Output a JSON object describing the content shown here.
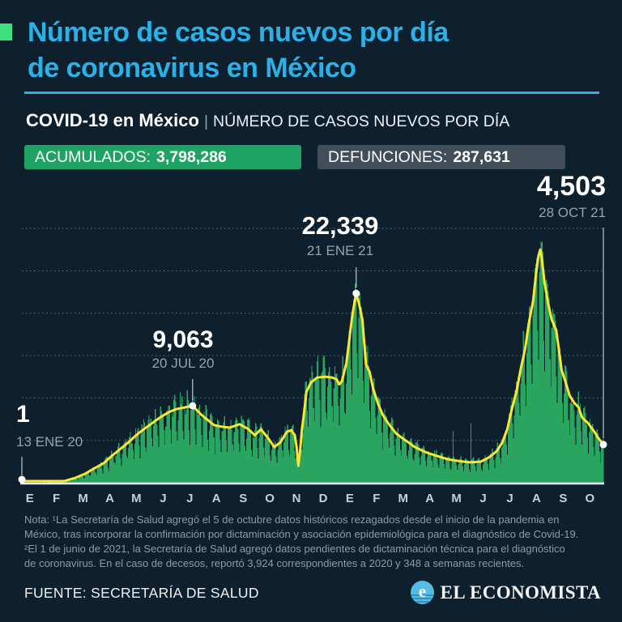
{
  "header": {
    "title_line1": "Número de casos nuevos por día",
    "title_line2": "de coronavirus en México",
    "subtitle_bold": "COVID-19 en México",
    "subtitle_sep": "|",
    "subtitle_rest": "NÚMERO DE CASOS NUEVOS POR DÍA",
    "accent_color": "#3FE081",
    "title_color": "#2BB1E7"
  },
  "badges": [
    {
      "label": "ACUMULADOS:",
      "value": "3,798,286",
      "bg": "#1FA364"
    },
    {
      "label": "DEFUNCIONES:",
      "value": "287,631",
      "bg": "#414E5A"
    }
  ],
  "chart_data": {
    "type": "bar",
    "title": "COVID-19 en México | Número de casos nuevos por día",
    "description": "barras = casos nuevos diarios; línea amarilla = tendencia (promedio móvil)",
    "x_start_date": "13 ENE 20",
    "x_end_date": "28 OCT 21",
    "months": [
      "E",
      "F",
      "M",
      "A",
      "M",
      "J",
      "J",
      "A",
      "S",
      "O",
      "N",
      "D",
      "E",
      "F",
      "M",
      "A",
      "M",
      "J",
      "J",
      "A",
      "S",
      "O"
    ],
    "ylim": [
      0,
      30000
    ],
    "grid_step": 5000,
    "grid_on": true,
    "annotations": [
      {
        "value": "1",
        "date": "13 ENE 20",
        "day": 0,
        "v": 1
      },
      {
        "value": "9,063",
        "date": "20 JUL 20",
        "day": 192,
        "v": 9063
      },
      {
        "value": "22,339",
        "date": "21 ENE 21",
        "day": 376,
        "v": 22339
      },
      {
        "value": "4,503",
        "date": "28 OCT 21",
        "day": 654,
        "v": 4503
      }
    ],
    "trend_7day_avg": [
      [
        0,
        1
      ],
      [
        20,
        10
      ],
      [
        35,
        60
      ],
      [
        48,
        200
      ],
      [
        60,
        570
      ],
      [
        71,
        1050
      ],
      [
        82,
        1720
      ],
      [
        92,
        2290
      ],
      [
        101,
        3150
      ],
      [
        110,
        3915
      ],
      [
        119,
        4680
      ],
      [
        128,
        5540
      ],
      [
        137,
        6300
      ],
      [
        147,
        7065
      ],
      [
        156,
        7735
      ],
      [
        165,
        8310
      ],
      [
        174,
        8690
      ],
      [
        183,
        8880
      ],
      [
        192,
        9063
      ],
      [
        202,
        8000
      ],
      [
        216,
        6800
      ],
      [
        225,
        6600
      ],
      [
        234,
        6500
      ],
      [
        245,
        6900
      ],
      [
        255,
        6300
      ],
      [
        262,
        5600
      ],
      [
        269,
        6300
      ],
      [
        278,
        5100
      ],
      [
        284,
        4200
      ],
      [
        291,
        4800
      ],
      [
        298,
        6000
      ],
      [
        303,
        6200
      ],
      [
        307,
        5600
      ],
      [
        309,
        4200
      ],
      [
        311,
        2000
      ],
      [
        313,
        3800
      ],
      [
        315,
        6300
      ],
      [
        317,
        7900
      ],
      [
        320,
        10700
      ],
      [
        325,
        11800
      ],
      [
        332,
        12400
      ],
      [
        342,
        12500
      ],
      [
        349,
        12400
      ],
      [
        354,
        12200
      ],
      [
        357,
        11600
      ],
      [
        360,
        12000
      ],
      [
        365,
        14100
      ],
      [
        369,
        17500
      ],
      [
        372,
        20000
      ],
      [
        376,
        22339
      ],
      [
        379,
        21200
      ],
      [
        383,
        19200
      ],
      [
        387,
        13900
      ],
      [
        391,
        13100
      ],
      [
        395,
        11100
      ],
      [
        401,
        9200
      ],
      [
        406,
        8000
      ],
      [
        412,
        7000
      ],
      [
        421,
        5800
      ],
      [
        430,
        5100
      ],
      [
        442,
        4200
      ],
      [
        454,
        3600
      ],
      [
        467,
        3150
      ],
      [
        479,
        2770
      ],
      [
        491,
        2560
      ],
      [
        504,
        2400
      ],
      [
        516,
        2480
      ],
      [
        525,
        2960
      ],
      [
        534,
        3720
      ],
      [
        540,
        4680
      ],
      [
        546,
        6300
      ],
      [
        550,
        8200
      ],
      [
        557,
        11100
      ],
      [
        561,
        13400
      ],
      [
        566,
        15800
      ],
      [
        570,
        18700
      ],
      [
        575,
        21500
      ],
      [
        578,
        24400
      ],
      [
        581,
        26800
      ],
      [
        583,
        27500
      ],
      [
        585,
        26300
      ],
      [
        588,
        23500
      ],
      [
        592,
        21100
      ],
      [
        596,
        19200
      ],
      [
        601,
        18000
      ],
      [
        607,
        13300
      ],
      [
        612,
        11700
      ],
      [
        616,
        10300
      ],
      [
        621,
        9450
      ],
      [
        626,
        8900
      ],
      [
        630,
        7700
      ],
      [
        637,
        7000
      ],
      [
        644,
        6000
      ],
      [
        648,
        5300
      ],
      [
        654,
        4503
      ]
    ],
    "weekly_factors": [
      0.55,
      0.92,
      1.04,
      1.08,
      1.1,
      1.03,
      0.7
    ],
    "spikes": [
      [
        485,
        6100
      ],
      [
        505,
        7000
      ]
    ],
    "colors": {
      "bar": "#2AA55F",
      "line": "#FBE636",
      "dot": "#FFFFFF",
      "grid": "#7E94A3",
      "baseline": "#E9EDF1",
      "month_label": "#C6D1D9"
    }
  },
  "footer": {
    "note_lines": [
      "Nota: ¹La Secretaría de Salud agregó el 5 de octubre datos históricos rezagados desde el inicio de la pandemia en",
      "México, tras incorporar la confirmación por dictaminación y asociación epidemiológica para el diagnóstico de Covid-19.",
      "²El 1 de junio de 2021, la Secretaría de Salud agregó datos pendientes de dictaminación técnica para el diagnóstico",
      "de coronavirus. En el caso de decesos, reportó 3,924 correspondientes a 2020 y 348 a semanas recientes."
    ],
    "source": "FUENTE: SECRETARÍA DE SALUD",
    "brand": "EL ECONOMISTA"
  }
}
